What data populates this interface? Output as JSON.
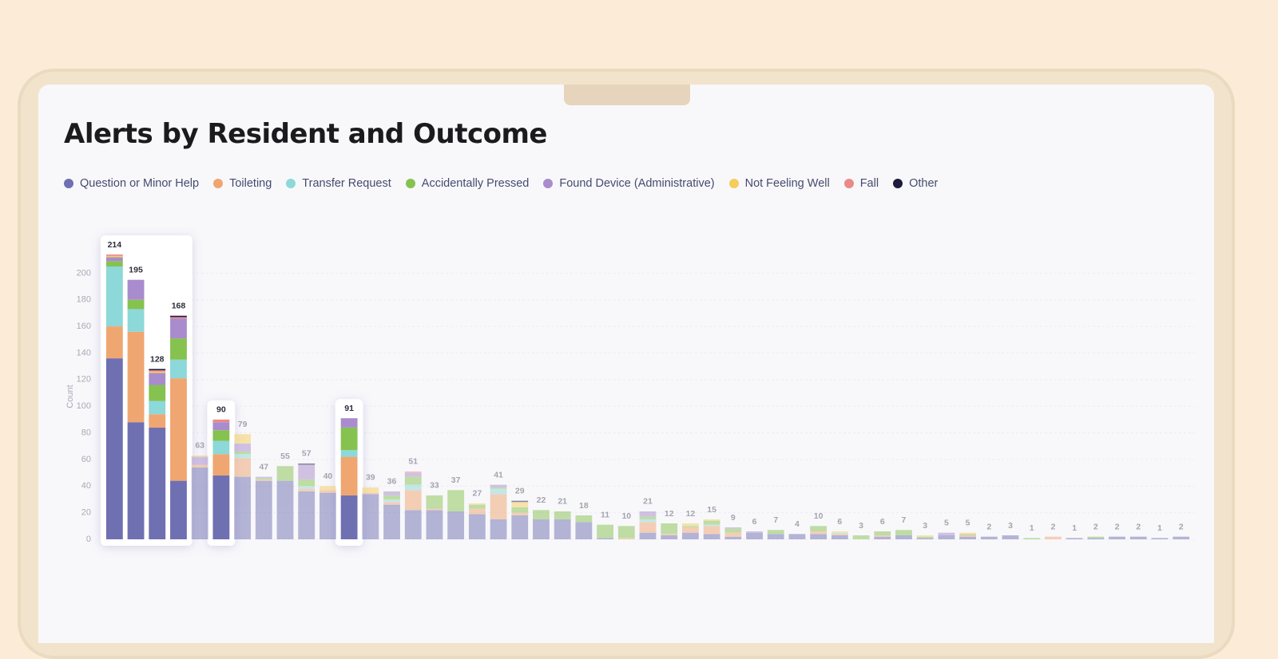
{
  "chart_data": {
    "type": "stacked_bar",
    "title": "Alerts by Resident and Outcome",
    "y_label": "Count",
    "ylim": [
      0,
      220
    ],
    "yticks": [
      0,
      20,
      40,
      60,
      80,
      100,
      120,
      140,
      160,
      180,
      200
    ],
    "grid": true,
    "legend": "top",
    "highlight": [
      0,
      1,
      2,
      3,
      5,
      11
    ],
    "totals": [
      214,
      195,
      128,
      168,
      63,
      90,
      79,
      47,
      55,
      57,
      40,
      91,
      39,
      36,
      51,
      33,
      37,
      27,
      41,
      29,
      22,
      21,
      18,
      11,
      10,
      21,
      12,
      12,
      15,
      9,
      6,
      7,
      4,
      10,
      6,
      3,
      6,
      7,
      3,
      5,
      5,
      2,
      3,
      1,
      2,
      1,
      2,
      2,
      2,
      1,
      2
    ],
    "series": [
      {
        "name": "Question or Minor Help",
        "color": "#6f70b1",
        "values": [
          136,
          88,
          84,
          44,
          54,
          48,
          47,
          44,
          44,
          36,
          35,
          33,
          34,
          26,
          22,
          22,
          21,
          19,
          15,
          18,
          15,
          15,
          13,
          1,
          0,
          5,
          3,
          5,
          4,
          2,
          5,
          4,
          4,
          4,
          3,
          0,
          2,
          3,
          1,
          3,
          2,
          2,
          3,
          0,
          0,
          1,
          1,
          2,
          2,
          1,
          2
        ]
      },
      {
        "name": "Toileting",
        "color": "#f0a671",
        "values": [
          24,
          68,
          10,
          77,
          2,
          16,
          14,
          1,
          0,
          2,
          2,
          29,
          1,
          2,
          15,
          1,
          0,
          4,
          19,
          2,
          0,
          0,
          0,
          0,
          1,
          8,
          1,
          4,
          6,
          3,
          0,
          0,
          0,
          2,
          1,
          0,
          1,
          0,
          0,
          0,
          1,
          0,
          0,
          0,
          2,
          0,
          0,
          0,
          0,
          0,
          0
        ]
      },
      {
        "name": "Transfer Request",
        "color": "#8dd8d8",
        "values": [
          45,
          17,
          10,
          14,
          0,
          10,
          3,
          0,
          0,
          2,
          0,
          5,
          0,
          2,
          4,
          0,
          0,
          0,
          4,
          0,
          0,
          0,
          0,
          0,
          0,
          2,
          0,
          0,
          1,
          0,
          0,
          0,
          0,
          0,
          1,
          0,
          0,
          0,
          0,
          0,
          0,
          0,
          0,
          0,
          0,
          0,
          0,
          0,
          0,
          0,
          0
        ]
      },
      {
        "name": "Accidentally Pressed",
        "color": "#86c24f",
        "values": [
          4,
          7,
          12,
          16,
          0,
          8,
          2,
          1,
          11,
          5,
          0,
          17,
          0,
          3,
          6,
          10,
          16,
          3,
          1,
          4,
          7,
          6,
          5,
          10,
          9,
          2,
          8,
          1,
          3,
          3,
          0,
          3,
          0,
          4,
          0,
          3,
          3,
          4,
          1,
          0,
          1,
          0,
          0,
          1,
          0,
          0,
          1,
          0,
          0,
          0,
          0
        ]
      },
      {
        "name": "Found Device (Administrative)",
        "color": "#a98ccd",
        "values": [
          3,
          15,
          9,
          15,
          6,
          6,
          6,
          1,
          0,
          11,
          0,
          7,
          0,
          3,
          3,
          0,
          0,
          0,
          2,
          0,
          0,
          0,
          0,
          0,
          0,
          4,
          0,
          0,
          0,
          1,
          1,
          0,
          0,
          0,
          0,
          0,
          0,
          0,
          0,
          2,
          0,
          0,
          0,
          0,
          0,
          0,
          0,
          0,
          0,
          0,
          0
        ]
      },
      {
        "name": "Not Feeling Well",
        "color": "#f6cd5b",
        "values": [
          1,
          0,
          1,
          0,
          1,
          0,
          7,
          0,
          0,
          0,
          3,
          0,
          4,
          0,
          0,
          0,
          0,
          1,
          0,
          4,
          0,
          0,
          0,
          0,
          0,
          0,
          0,
          2,
          1,
          0,
          0,
          0,
          0,
          0,
          1,
          0,
          0,
          0,
          1,
          0,
          1,
          0,
          0,
          0,
          0,
          0,
          0,
          0,
          0,
          0,
          0
        ]
      },
      {
        "name": "Fall",
        "color": "#ea8a89",
        "values": [
          1,
          0,
          1,
          1,
          0,
          2,
          0,
          0,
          0,
          0,
          0,
          0,
          0,
          0,
          1,
          0,
          0,
          0,
          0,
          0,
          0,
          0,
          0,
          0,
          0,
          0,
          0,
          0,
          0,
          0,
          0,
          0,
          0,
          0,
          0,
          0,
          0,
          0,
          0,
          0,
          0,
          0,
          0,
          0,
          0,
          0,
          0,
          0,
          0,
          0,
          0
        ]
      },
      {
        "name": "Other",
        "color": "#1e1b3d",
        "values": [
          0,
          0,
          1,
          1,
          0,
          0,
          0,
          0,
          0,
          1,
          0,
          0,
          0,
          0,
          0,
          0,
          0,
          0,
          0,
          1,
          0,
          0,
          0,
          0,
          0,
          0,
          0,
          0,
          0,
          0,
          0,
          0,
          0,
          0,
          0,
          0,
          0,
          0,
          0,
          0,
          0,
          0,
          0,
          0,
          0,
          0,
          0,
          0,
          0,
          0,
          0
        ]
      }
    ]
  }
}
